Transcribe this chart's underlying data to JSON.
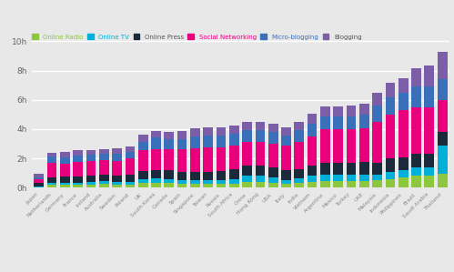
{
  "categories": [
    "Japan",
    "Netherlands",
    "Germany",
    "France",
    "Ireland",
    "Australia",
    "Sweden",
    "Poland",
    "UK",
    "South Korea",
    "Canada",
    "Spain",
    "Singapore",
    "Taiwan",
    "Russia",
    "South Africa",
    "China",
    "Hong Kong",
    "USA",
    "Italy",
    "India",
    "Vietnam",
    "Argentina",
    "Mexico",
    "Turkey",
    "UAE",
    "Malaysia",
    "Indonesia",
    "Philippines",
    "Brazil",
    "Saudi Arabia",
    "Thailand"
  ],
  "series": {
    "Online Radio": [
      0.05,
      0.18,
      0.18,
      0.18,
      0.22,
      0.25,
      0.22,
      0.22,
      0.3,
      0.35,
      0.3,
      0.25,
      0.25,
      0.25,
      0.25,
      0.28,
      0.4,
      0.4,
      0.35,
      0.25,
      0.35,
      0.4,
      0.45,
      0.45,
      0.45,
      0.45,
      0.5,
      0.6,
      0.7,
      0.8,
      0.8,
      0.95
    ],
    "Online TV": [
      0.05,
      0.12,
      0.15,
      0.15,
      0.15,
      0.2,
      0.15,
      0.2,
      0.25,
      0.28,
      0.28,
      0.25,
      0.25,
      0.25,
      0.25,
      0.3,
      0.4,
      0.4,
      0.38,
      0.28,
      0.32,
      0.4,
      0.42,
      0.42,
      0.42,
      0.42,
      0.42,
      0.5,
      0.5,
      0.6,
      0.6,
      1.9
    ],
    "Online Press": [
      0.25,
      0.42,
      0.42,
      0.45,
      0.45,
      0.42,
      0.45,
      0.5,
      0.6,
      0.6,
      0.65,
      0.6,
      0.6,
      0.6,
      0.65,
      0.7,
      0.7,
      0.7,
      0.65,
      0.7,
      0.6,
      0.7,
      0.8,
      0.8,
      0.8,
      0.9,
      0.8,
      0.9,
      0.9,
      0.9,
      0.9,
      0.95
    ],
    "Social Networking": [
      0.25,
      1.0,
      0.9,
      1.0,
      1.0,
      1.0,
      1.0,
      1.1,
      1.4,
      1.4,
      1.4,
      1.5,
      1.6,
      1.65,
      1.6,
      1.6,
      1.65,
      1.65,
      1.65,
      1.65,
      1.85,
      2.0,
      2.3,
      2.3,
      2.3,
      2.3,
      2.8,
      3.0,
      3.2,
      3.2,
      3.2,
      2.2
    ],
    "Micro-blogging": [
      0.08,
      0.42,
      0.42,
      0.42,
      0.42,
      0.42,
      0.5,
      0.45,
      0.6,
      0.8,
      0.7,
      0.7,
      0.8,
      0.8,
      0.8,
      0.8,
      0.8,
      0.8,
      0.8,
      0.7,
      0.8,
      0.9,
      0.9,
      0.9,
      0.9,
      0.9,
      1.1,
      1.2,
      1.2,
      1.4,
      1.4,
      1.4
    ],
    "Blogging": [
      0.25,
      0.25,
      0.35,
      0.35,
      0.35,
      0.35,
      0.35,
      0.35,
      0.45,
      0.45,
      0.45,
      0.55,
      0.55,
      0.55,
      0.55,
      0.55,
      0.55,
      0.55,
      0.55,
      0.55,
      0.55,
      0.65,
      0.65,
      0.65,
      0.75,
      0.75,
      0.85,
      0.95,
      0.95,
      1.25,
      1.45,
      1.9
    ]
  },
  "colors": {
    "Online Radio": "#8dc63f",
    "Online TV": "#00b0d8",
    "Online Press": "#1b2a3b",
    "Social Networking": "#e8007d",
    "Micro-blogging": "#3a6fba",
    "Blogging": "#7b5ea7"
  },
  "legend_text_colors": {
    "Online Radio": "#8dc63f",
    "Online TV": "#00b0d8",
    "Online Press": "#555555",
    "Social Networking": "#e8007d",
    "Micro-blogging": "#3a6fba",
    "Blogging": "#555555"
  },
  "yticks": [
    0,
    2,
    4,
    6,
    8,
    10
  ],
  "ytick_labels": [
    "0h",
    "2h",
    "4h",
    "6h",
    "8h",
    "10h"
  ],
  "bg_color": "#e8e8e8",
  "grid_color": "#ffffff"
}
